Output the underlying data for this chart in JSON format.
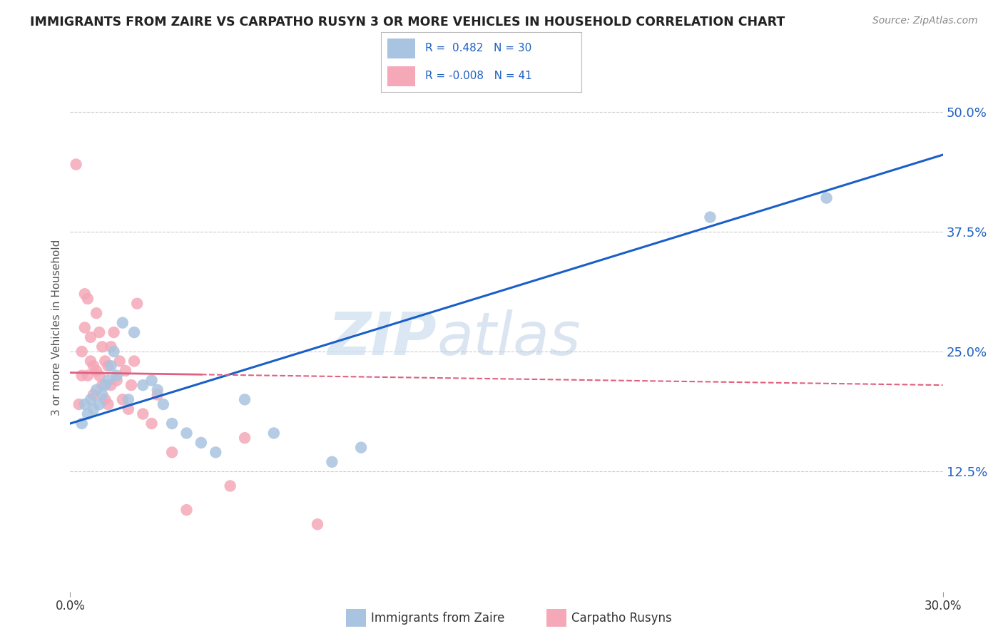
{
  "title": "IMMIGRANTS FROM ZAIRE VS CARPATHO RUSYN 3 OR MORE VEHICLES IN HOUSEHOLD CORRELATION CHART",
  "source": "Source: ZipAtlas.com",
  "ylabel": "3 or more Vehicles in Household",
  "yticks": [
    "50.0%",
    "37.5%",
    "25.0%",
    "12.5%"
  ],
  "ytick_vals": [
    0.5,
    0.375,
    0.25,
    0.125
  ],
  "xlim": [
    0.0,
    0.3
  ],
  "ylim": [
    0.0,
    0.55
  ],
  "legend_blue_r": "0.482",
  "legend_blue_n": "30",
  "legend_pink_r": "-0.008",
  "legend_pink_n": "41",
  "legend_label_blue": "Immigrants from Zaire",
  "legend_label_pink": "Carpatho Rusyns",
  "blue_color": "#a8c4e0",
  "pink_color": "#f4a8b8",
  "blue_line_color": "#1a5fc8",
  "pink_line_color": "#e06080",
  "watermark_zip": "ZIP",
  "watermark_atlas": "atlas",
  "background_color": "#ffffff",
  "grid_color": "#cccccc",
  "blue_scatter_x": [
    0.004,
    0.005,
    0.006,
    0.007,
    0.008,
    0.009,
    0.01,
    0.011,
    0.012,
    0.013,
    0.014,
    0.015,
    0.016,
    0.018,
    0.02,
    0.022,
    0.025,
    0.028,
    0.03,
    0.032,
    0.035,
    0.04,
    0.045,
    0.05,
    0.06,
    0.07,
    0.09,
    0.1,
    0.22,
    0.26
  ],
  "blue_scatter_y": [
    0.175,
    0.195,
    0.185,
    0.2,
    0.19,
    0.21,
    0.195,
    0.205,
    0.215,
    0.22,
    0.235,
    0.25,
    0.225,
    0.28,
    0.2,
    0.27,
    0.215,
    0.22,
    0.21,
    0.195,
    0.175,
    0.165,
    0.155,
    0.145,
    0.2,
    0.165,
    0.135,
    0.15,
    0.39,
    0.41
  ],
  "pink_scatter_x": [
    0.002,
    0.003,
    0.004,
    0.004,
    0.005,
    0.005,
    0.006,
    0.006,
    0.007,
    0.007,
    0.008,
    0.008,
    0.009,
    0.009,
    0.01,
    0.01,
    0.011,
    0.011,
    0.012,
    0.012,
    0.013,
    0.013,
    0.014,
    0.014,
    0.015,
    0.016,
    0.017,
    0.018,
    0.019,
    0.02,
    0.021,
    0.022,
    0.023,
    0.025,
    0.028,
    0.03,
    0.035,
    0.04,
    0.055,
    0.06,
    0.085
  ],
  "pink_scatter_y": [
    0.445,
    0.195,
    0.25,
    0.225,
    0.275,
    0.31,
    0.225,
    0.305,
    0.265,
    0.24,
    0.235,
    0.205,
    0.29,
    0.23,
    0.27,
    0.225,
    0.255,
    0.215,
    0.24,
    0.2,
    0.235,
    0.195,
    0.255,
    0.215,
    0.27,
    0.22,
    0.24,
    0.2,
    0.23,
    0.19,
    0.215,
    0.24,
    0.3,
    0.185,
    0.175,
    0.205,
    0.145,
    0.085,
    0.11,
    0.16,
    0.07
  ],
  "blue_line_x0": 0.0,
  "blue_line_x1": 0.3,
  "blue_line_y0": 0.175,
  "blue_line_y1": 0.455,
  "pink_line_x0": 0.0,
  "pink_line_solid_x1": 0.045,
  "pink_line_dash_x1": 0.3,
  "pink_line_y0": 0.228,
  "pink_line_y1": 0.215
}
